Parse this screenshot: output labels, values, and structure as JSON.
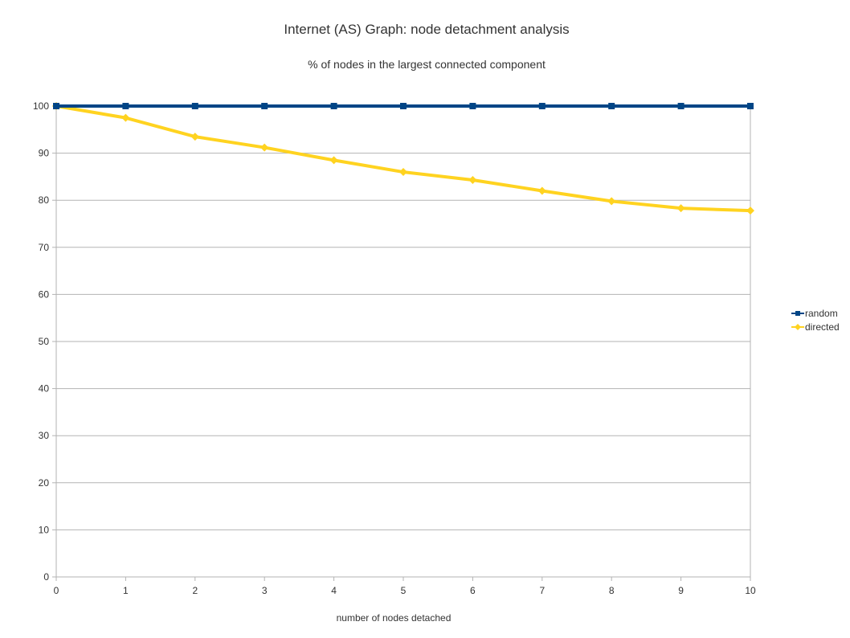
{
  "chart_data": {
    "type": "line",
    "title": "Internet (AS) Graph: node detachment analysis",
    "subtitle": "% of nodes in the largest connected component",
    "xlabel": "number of nodes detached",
    "ylabel": "",
    "x": [
      0,
      1,
      2,
      3,
      4,
      5,
      6,
      7,
      8,
      9,
      10
    ],
    "ylim": [
      0,
      100
    ],
    "yticks": [
      0,
      10,
      20,
      30,
      40,
      50,
      60,
      70,
      80,
      90,
      100
    ],
    "grid": true,
    "legend_position": "right",
    "series": [
      {
        "name": "random",
        "color": "#004586",
        "marker": "square",
        "values": [
          100,
          100,
          100,
          100,
          100,
          100,
          100,
          100,
          100,
          100,
          100
        ]
      },
      {
        "name": "directed",
        "color": "#ffd320",
        "marker": "diamond",
        "values": [
          100,
          97.5,
          93.5,
          91.2,
          88.5,
          86,
          84.3,
          82,
          79.8,
          78.3,
          77.8
        ]
      }
    ]
  }
}
